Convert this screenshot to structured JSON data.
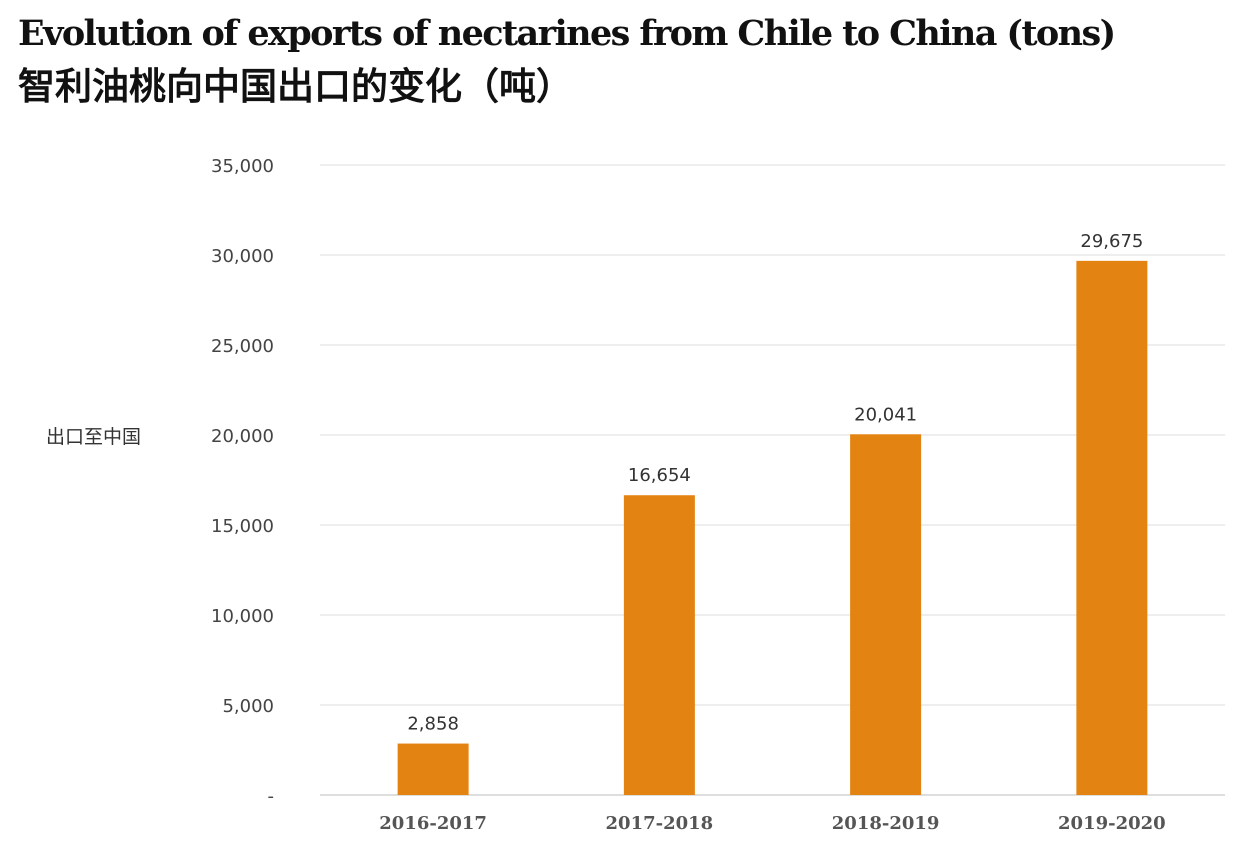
{
  "chart_data": {
    "type": "bar",
    "title": "Evolution of exports of nectarines from Chile to China (tons)",
    "subtitle": "智利油桃向中国出口的变化（吨）",
    "ylabel": "出口至中国",
    "xlabel": "",
    "categories": [
      "2016-2017",
      "2017-2018",
      "2018-2019",
      "2019-2020"
    ],
    "values": [
      2858,
      16654,
      20041,
      29675
    ],
    "value_labels": [
      "2,858",
      "16,654",
      "20,041",
      "29,675"
    ],
    "ylim": [
      0,
      35000
    ],
    "yticks": [
      0,
      5000,
      10000,
      15000,
      20000,
      25000,
      30000,
      35000
    ],
    "ytick_labels": [
      "-",
      "5,000",
      "10,000",
      "15,000",
      "20,000",
      "25,000",
      "30,000",
      "35,000"
    ],
    "grid": true,
    "legend": "none",
    "bar_color": "#E38312"
  }
}
